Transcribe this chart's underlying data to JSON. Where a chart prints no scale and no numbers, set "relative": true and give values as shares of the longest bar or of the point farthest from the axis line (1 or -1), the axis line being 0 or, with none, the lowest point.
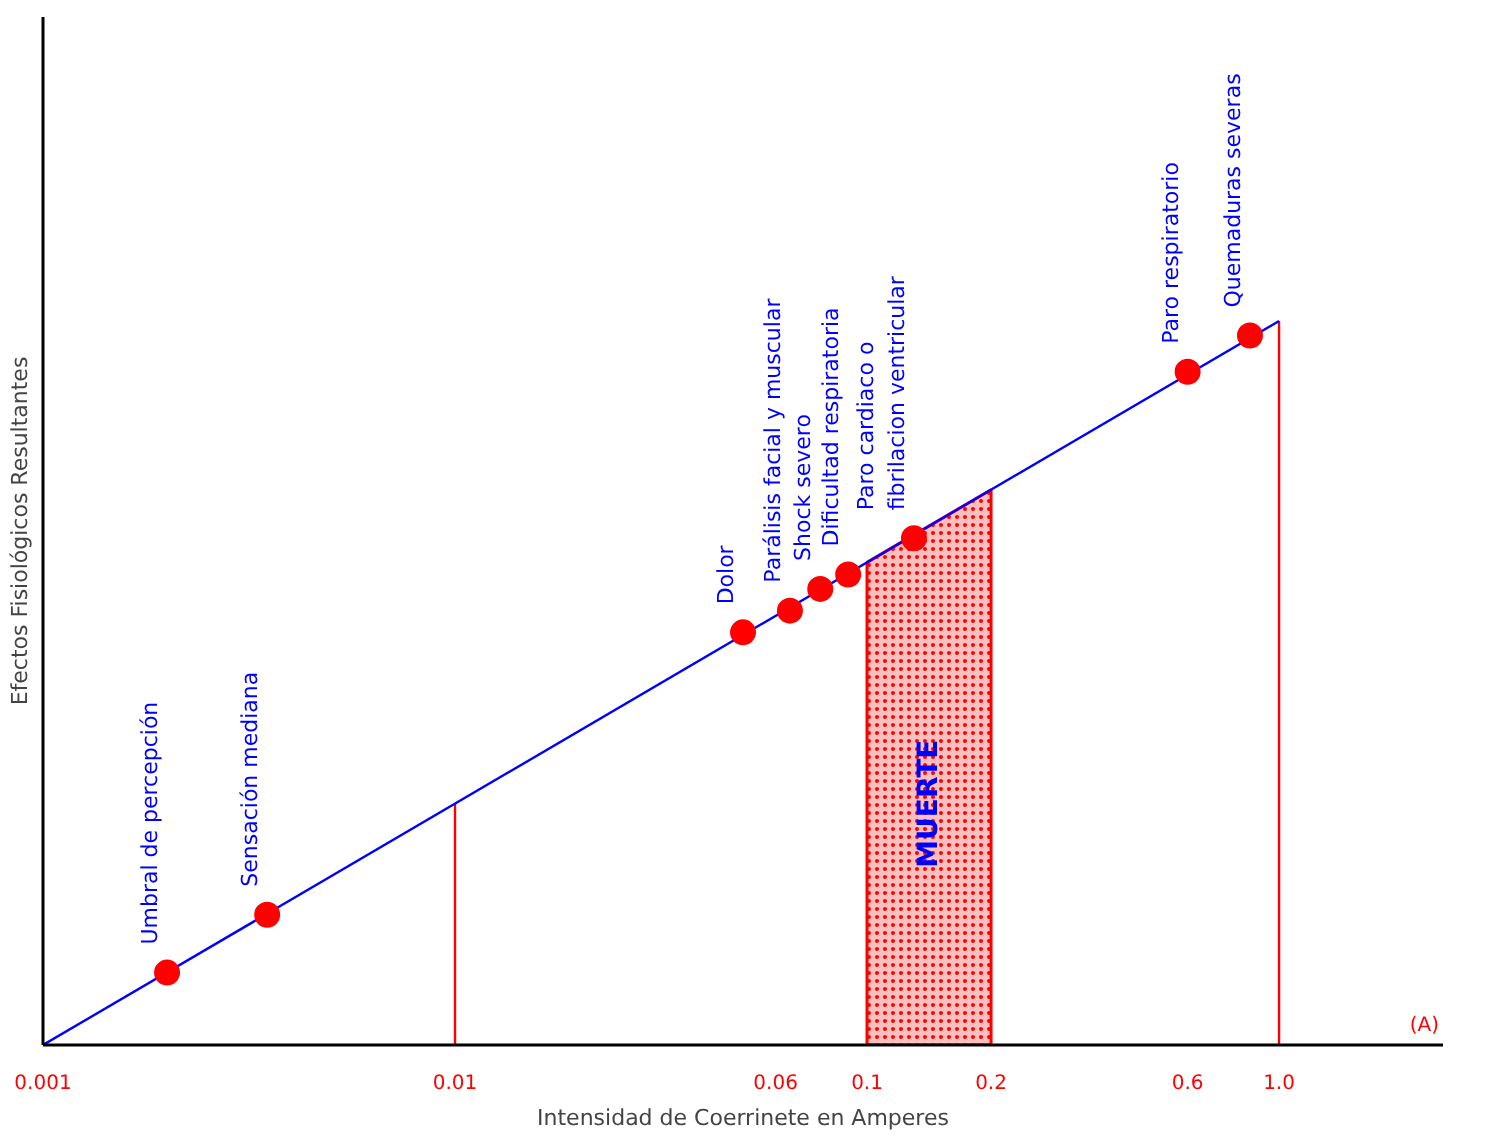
{
  "chart_data": {
    "type": "line",
    "relative": true,
    "log": "x",
    "xlabel": "Intensidad de Coerrinete en Amperes",
    "ylabel": "Efectos Fisiológicos Resultantes",
    "xlim": [
      0.001,
      2.5
    ],
    "xticks": [
      0.001,
      0.01,
      0.06,
      0.1,
      0.2,
      0.6,
      {
        "value": 1,
        "label": "1.0"
      }
    ],
    "tick_labels": "x",
    "grid": false,
    "series": [
      {
        "color": "#0000ff",
        "x": [
          0.001,
          1
        ],
        "values": [
          0,
          1
        ],
        "marker": "none"
      },
      {
        "type": "scatter",
        "color": "#ff0000",
        "marker": "circle",
        "x": [
          0.002,
          0.0035,
          0.05,
          0.065,
          0.077,
          0.09,
          0.13,
          0.6,
          0.85
        ],
        "values": [
          0.1,
          0.18,
          0.57,
          0.6,
          0.63,
          0.65,
          0.7,
          0.93,
          0.98
        ]
      }
    ],
    "ref_lines": [
      {
        "axis": "x",
        "value": 0.01,
        "color": "#ff0000"
      },
      {
        "axis": "x",
        "value": 1,
        "color": "#ff0000"
      }
    ],
    "bands": [
      {
        "axis": "x",
        "from": 0.1,
        "to": 0.2,
        "label": "MUERTE",
        "color": "#ff0000"
      }
    ],
    "annotations": [
      {
        "text": "Umbral de percepción",
        "x": 0.002,
        "y": 0.1
      },
      {
        "text": "Sensación mediana",
        "x": 0.0035,
        "y": 0.18
      },
      {
        "text": "Dolor",
        "x": 0.05,
        "y": 0.57
      },
      {
        "text": "Parálisis facial y muscular",
        "x": 0.065,
        "y": 0.6
      },
      {
        "text": "Shock severo",
        "x": 0.077,
        "y": 0.63
      },
      {
        "text": "Dificultad respiratoria",
        "x": 0.09,
        "y": 0.65
      },
      {
        "text": "Paro cardiaco o\nfibrilacion ventricular",
        "x": 0.13,
        "y": 0.7
      },
      {
        "text": "Paro respiratorio",
        "x": 0.6,
        "y": 0.93
      },
      {
        "text": "Quemaduras severas",
        "x": 0.85,
        "y": 0.98
      },
      "(A)"
    ]
  }
}
